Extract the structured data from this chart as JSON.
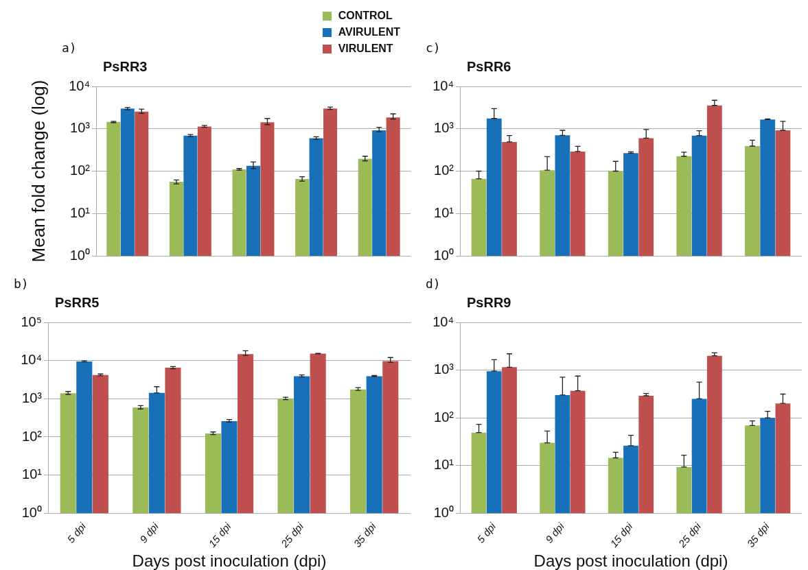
{
  "chart_data": [
    {
      "type": "bar",
      "title": "PsRR3",
      "annotations": [
        "a)"
      ],
      "categories": [
        null,
        null,
        null,
        null,
        null
      ],
      "log": "y",
      "grid": "y",
      "legend": "top",
      "tick_labels": "y",
      "ylabel": "Mean fold change (log)",
      "ylim": [
        1,
        10000
      ],
      "yticks": [
        {
          "value": 1,
          "label": "10⁰"
        },
        {
          "value": 10,
          "label": "10¹"
        },
        {
          "value": 100,
          "label": "10²"
        },
        {
          "value": 1000,
          "label": "10³"
        },
        {
          "value": 10000,
          "label": "10⁴"
        }
      ],
      "series": [
        {
          "name": "CONTROL",
          "color": "#9bbb59",
          "values": [
            1450,
            56,
            110,
            65,
            195
          ],
          "errors": [
            [
              1400,
              1500
            ],
            [
              50,
              62
            ],
            [
              105,
              115
            ],
            [
              58,
              74
            ],
            [
              175,
              225
            ]
          ]
        },
        {
          "name": "AVIRULENT",
          "color": "#1770b8",
          "values": [
            3000,
            690,
            134,
            600,
            920
          ],
          "errors": [
            [
              2800,
              3200
            ],
            [
              650,
              730
            ],
            [
              115,
              165
            ],
            [
              560,
              650
            ],
            [
              850,
              1080
            ]
          ]
        },
        {
          "name": "VIRULENT",
          "color": "#c0504d",
          "values": [
            2550,
            1130,
            1420,
            3000,
            1850
          ],
          "errors": [
            [
              2300,
              2900
            ],
            [
              1080,
              1200
            ],
            [
              1250,
              1750
            ],
            [
              2850,
              3250
            ],
            [
              1700,
              2250
            ]
          ]
        }
      ]
    },
    {
      "type": "bar",
      "title": "PsRR6",
      "annotations": [
        "c)"
      ],
      "categories": [
        null,
        null,
        null,
        null,
        null
      ],
      "log": "y",
      "grid": "y",
      "tick_labels": "y",
      "ylim": [
        1,
        10000
      ],
      "yticks": [
        {
          "value": 1,
          "label": "10⁰"
        },
        {
          "value": 10,
          "label": "10¹"
        },
        {
          "value": 100,
          "label": "10²"
        },
        {
          "value": 1000,
          "label": "10³"
        },
        {
          "value": 10000,
          "label": "10⁴"
        }
      ],
      "series": [
        {
          "color": "#9bbb59",
          "values": [
            66,
            105,
            100,
            225,
            390
          ],
          "errors": [
            [
              66,
              100
            ],
            [
              105,
              220
            ],
            [
              100,
              170
            ],
            [
              225,
              280
            ],
            [
              390,
              540
            ]
          ]
        },
        {
          "color": "#1770b8",
          "values": [
            1750,
            700,
            265,
            690,
            1650
          ],
          "errors": [
            [
              1750,
              3000
            ],
            [
              700,
              920
            ],
            [
              265,
              285
            ],
            [
              690,
              900
            ],
            [
              1650,
              1700
            ]
          ]
        },
        {
          "color": "#c0504d",
          "values": [
            490,
            290,
            600,
            3550,
            920
          ],
          "errors": [
            [
              490,
              690
            ],
            [
              290,
              385
            ],
            [
              600,
              960
            ],
            [
              3550,
              4700
            ],
            [
              920,
              1500
            ]
          ]
        }
      ]
    },
    {
      "type": "bar",
      "title": "PsRR5",
      "annotations": [
        "b)"
      ],
      "categories": [
        "5 dpi",
        "9 dpi",
        "15 dpi",
        "25 dpi",
        "35 dpi"
      ],
      "log": "y",
      "grid": "y",
      "xlabel": "Days post inoculation (dpi)",
      "ylim": [
        1,
        100000
      ],
      "yticks": [
        {
          "value": 1,
          "label": "10⁰"
        },
        {
          "value": 10,
          "label": "10¹"
        },
        {
          "value": 100,
          "label": "10²"
        },
        {
          "value": 1000,
          "label": "10³"
        },
        {
          "value": 10000,
          "label": "10⁴"
        },
        {
          "value": 100000,
          "label": "10⁵"
        }
      ],
      "series": [
        {
          "color": "#9bbb59",
          "values": [
            1400,
            590,
            123,
            1000,
            1750
          ],
          "errors": [
            [
              1300,
              1550
            ],
            [
              540,
              660
            ],
            [
              115,
              135
            ],
            [
              950,
              1100
            ],
            [
              1650,
              1950
            ]
          ]
        },
        {
          "color": "#1770b8",
          "values": [
            9500,
            1420,
            260,
            3900,
            3900
          ],
          "errors": [
            [
              9200,
              9900
            ],
            [
              1420,
              2070
            ],
            [
              245,
              285
            ],
            [
              3700,
              4200
            ],
            [
              3800,
              4050
            ]
          ]
        },
        {
          "color": "#c0504d",
          "values": [
            4200,
            6500,
            14700,
            15300,
            9700
          ],
          "errors": [
            [
              4000,
              4450
            ],
            [
              6100,
              7000
            ],
            [
              13500,
              18000
            ],
            [
              15000,
              15500
            ],
            [
              9000,
              12000
            ]
          ]
        }
      ]
    },
    {
      "type": "bar",
      "title": "PsRR9",
      "annotations": [
        "d)"
      ],
      "categories": [
        "5 dpi",
        "9 dpi",
        "15 dpi",
        "25 dpi",
        "35 dpi"
      ],
      "log": "y",
      "grid": "y",
      "xlabel": "Days post inoculation (dpi)",
      "ylim": [
        1,
        10000
      ],
      "yticks": [
        {
          "value": 1,
          "label": "10⁰"
        },
        {
          "value": 10,
          "label": "10¹"
        },
        {
          "value": 100,
          "label": "10²"
        },
        {
          "value": 1000,
          "label": "10³"
        },
        {
          "value": 10000,
          "label": "10⁴"
        }
      ],
      "series": [
        {
          "color": "#9bbb59",
          "values": [
            49,
            30,
            14.5,
            9.3,
            69
          ],
          "errors": [
            [
              49,
              73
            ],
            [
              30,
              53
            ],
            [
              14.5,
              19
            ],
            [
              9.3,
              16.5
            ],
            [
              69,
              86
            ]
          ]
        },
        {
          "color": "#1770b8",
          "values": [
            950,
            300,
            26,
            250,
            100
          ],
          "errors": [
            [
              950,
              1650
            ],
            [
              300,
              710
            ],
            [
              26,
              43
            ],
            [
              250,
              560
            ],
            [
              100,
              137
            ]
          ]
        },
        {
          "color": "#c0504d",
          "values": [
            1150,
            370,
            290,
            2000,
            200
          ],
          "errors": [
            [
              1150,
              2200
            ],
            [
              370,
              750
            ],
            [
              290,
              325
            ],
            [
              2000,
              2300
            ],
            [
              200,
              315
            ]
          ]
        }
      ]
    }
  ]
}
